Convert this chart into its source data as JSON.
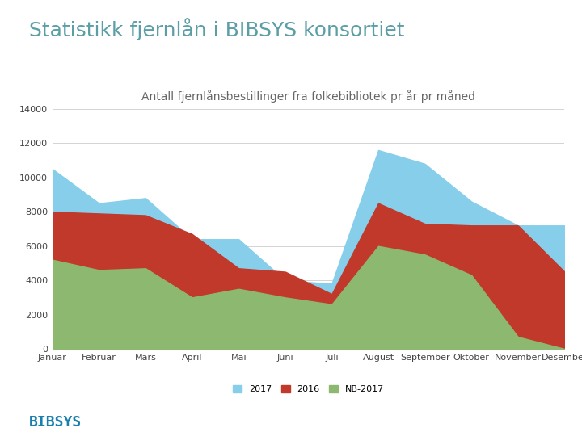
{
  "title": "Statistikk fjernlån i BIBSYS konsortiet",
  "subtitle": "Antall fjernlånsbestillinger fra folkebibliotek pr år pr måned",
  "months": [
    "Januar",
    "Februar",
    "Mars",
    "April",
    "Mai",
    "Juni",
    "Juli",
    "August",
    "September",
    "Oktober",
    "November",
    "Desember"
  ],
  "series_2017": [
    10500,
    8500,
    8800,
    6400,
    6400,
    4000,
    3800,
    11600,
    10800,
    8600,
    7200,
    7200
  ],
  "series_2016": [
    8000,
    7900,
    7800,
    6700,
    4700,
    4500,
    3200,
    8500,
    7300,
    7200,
    7200,
    4500
  ],
  "series_nb2017": [
    5200,
    4600,
    4700,
    3000,
    3500,
    3000,
    2600,
    6000,
    5500,
    4300,
    700,
    0
  ],
  "color_2017": "#87CEEB",
  "color_2016": "#C0392B",
  "color_nb2017": "#8DB870",
  "ylim": [
    0,
    14000
  ],
  "yticks": [
    0,
    2000,
    4000,
    6000,
    8000,
    10000,
    12000,
    14000
  ],
  "background_color": "#ffffff",
  "title_color": "#5B9EA6",
  "subtitle_color": "#666666",
  "bibsys_color": "#1A7FAD",
  "legend_labels": [
    "2017",
    "2016",
    "NB-2017"
  ],
  "title_fontsize": 18,
  "subtitle_fontsize": 10,
  "axis_fontsize": 8
}
